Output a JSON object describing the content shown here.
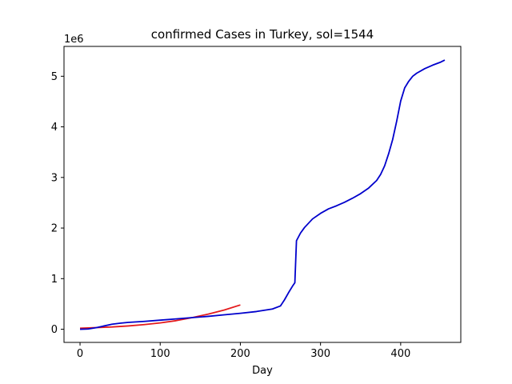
{
  "chart_data": {
    "type": "line",
    "title": "confirmed Cases in Turkey, sol=1544",
    "xlabel": "Day",
    "ylabel": "",
    "y_offset_label": "1e6",
    "xlim": [
      -20,
      475
    ],
    "ylim": [
      -260000,
      5590000
    ],
    "x_ticks": [
      0,
      100,
      200,
      300,
      400
    ],
    "x_tick_labels": [
      "0",
      "100",
      "200",
      "300",
      "400"
    ],
    "y_ticks": [
      0,
      1000000,
      2000000,
      3000000,
      4000000,
      5000000
    ],
    "y_tick_labels": [
      "0",
      "1",
      "2",
      "3",
      "4",
      "5"
    ],
    "grid": false,
    "series": [
      {
        "color": "#e41a1c",
        "x": [
          0,
          20,
          40,
          60,
          80,
          100,
          120,
          140,
          160,
          180,
          200
        ],
        "y": [
          20000,
          32000,
          45000,
          65000,
          92000,
          125000,
          170000,
          230000,
          300000,
          380000,
          480000
        ]
      },
      {
        "color": "#0000cc",
        "x": [
          0,
          10,
          20,
          30,
          40,
          50,
          60,
          80,
          100,
          120,
          140,
          160,
          180,
          200,
          220,
          240,
          250,
          255,
          260,
          265,
          268,
          270,
          275,
          280,
          290,
          300,
          310,
          320,
          330,
          340,
          350,
          360,
          370,
          375,
          380,
          385,
          390,
          395,
          400,
          405,
          410,
          415,
          420,
          430,
          440,
          450,
          455
        ],
        "y": [
          0,
          5000,
          30000,
          65000,
          100000,
          120000,
          135000,
          155000,
          180000,
          205000,
          230000,
          255000,
          285000,
          315000,
          350000,
          400000,
          460000,
          580000,
          720000,
          850000,
          920000,
          1750000,
          1900000,
          2010000,
          2180000,
          2290000,
          2380000,
          2440000,
          2510000,
          2590000,
          2680000,
          2790000,
          2940000,
          3060000,
          3230000,
          3470000,
          3750000,
          4110000,
          4510000,
          4770000,
          4900000,
          5000000,
          5060000,
          5150000,
          5220000,
          5280000,
          5320000
        ]
      }
    ]
  }
}
